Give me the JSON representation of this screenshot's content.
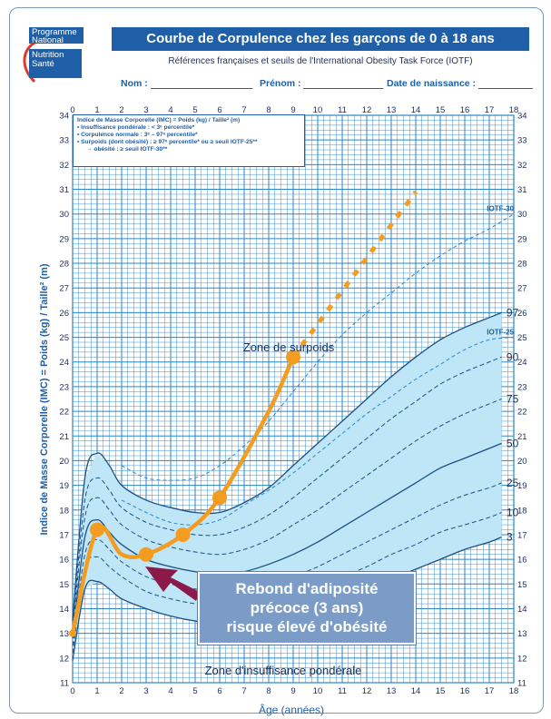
{
  "logo": {
    "line1": "Programme",
    "line2": "National",
    "line3": "Nutrition",
    "line4": "Santé"
  },
  "header": {
    "title": "Courbe de Corpulence chez les garçons de 0 à 18 ans",
    "subtitle": "Références françaises et seuils de l'International Obesity Task Force (IOTF)"
  },
  "form": {
    "name_label": "Nom :",
    "firstname_label": "Prénom :",
    "birthdate_label": "Date de naissance :"
  },
  "legend": {
    "line1": "Indice de Masse Corporelle (IMC) = Poids (kg) / Taille² (m)",
    "line2": "• Insuffisance pondérale : < 3ᵉ percentile*",
    "line3": "• Corpulence normale : 3ᵉ – 97ᵉ percentile*",
    "line4": "• Surpoids (dont obésité) : ≥ 97ᵉ percentile* ou ≥ seuil IOTF-25**",
    "line5": "→ obésité : ≥ seuil IOTF-30**"
  },
  "annotation": {
    "line1": "Rebond d'adiposité",
    "line2": "précoce (3 ans)",
    "line3": "risque élevé d'obésité"
  },
  "colors": {
    "brand_blue": "#1e5fa8",
    "grid_blue": "#2a86c8",
    "band_fill": "#bfe6f6",
    "child_curve": "#f39c1f"
  },
  "chart_data": {
    "type": "line",
    "xlabel": "Âge (années)",
    "ylabel": "Indice de Masse Corporelle (IMC) = Poids (kg) / Taille² (m)",
    "xlim": [
      0,
      18
    ],
    "ylim": [
      11,
      34
    ],
    "x_ticks": [
      0,
      1,
      2,
      3,
      4,
      5,
      6,
      7,
      8,
      9,
      10,
      11,
      12,
      13,
      14,
      15,
      16,
      17,
      18
    ],
    "y_ticks": [
      11,
      12,
      13,
      14,
      15,
      16,
      17,
      18,
      19,
      20,
      21,
      22,
      23,
      24,
      25,
      26,
      27,
      28,
      29,
      30,
      31,
      32,
      33,
      34
    ],
    "grid": true,
    "zone_labels": {
      "overweight": "Zone de surpoids",
      "underweight": "Zone d'insuffisance pondérale"
    },
    "percentile_curves": [
      {
        "name": "97",
        "x": [
          0,
          0.5,
          1,
          1.5,
          2,
          3,
          4,
          5,
          6,
          7,
          8,
          9,
          10,
          11,
          12,
          13,
          14,
          15,
          16,
          17,
          17.5
        ],
        "y": [
          13.5,
          19.3,
          20.3,
          19.8,
          19.0,
          18.4,
          18.1,
          17.9,
          17.9,
          18.3,
          18.9,
          19.8,
          20.7,
          21.6,
          22.5,
          23.4,
          24.2,
          24.9,
          25.4,
          25.8,
          26.0
        ]
      },
      {
        "name": "90",
        "x": [
          0,
          0.5,
          1,
          1.5,
          2,
          3,
          4,
          5,
          6,
          7,
          8,
          9,
          10,
          11,
          12,
          13,
          14,
          15,
          16,
          17,
          17.5
        ],
        "y": [
          13.3,
          18.4,
          19.3,
          18.8,
          18.1,
          17.5,
          17.2,
          17.0,
          17.0,
          17.3,
          17.8,
          18.5,
          19.3,
          20.1,
          20.9,
          21.7,
          22.4,
          23.1,
          23.6,
          24.0,
          24.2
        ]
      },
      {
        "name": "75",
        "x": [
          0,
          0.5,
          1,
          1.5,
          2,
          3,
          4,
          5,
          6,
          7,
          8,
          9,
          10,
          11,
          12,
          13,
          14,
          15,
          16,
          17,
          17.5
        ],
        "y": [
          13.1,
          17.7,
          18.5,
          18.0,
          17.4,
          16.8,
          16.5,
          16.3,
          16.2,
          16.4,
          16.8,
          17.4,
          18.0,
          18.7,
          19.4,
          20.1,
          20.8,
          21.4,
          21.9,
          22.3,
          22.5
        ]
      },
      {
        "name": "50",
        "x": [
          0,
          0.5,
          1,
          1.5,
          2,
          3,
          4,
          5,
          6,
          7,
          8,
          9,
          10,
          11,
          12,
          13,
          14,
          15,
          16,
          17,
          17.5
        ],
        "y": [
          12.8,
          16.9,
          17.6,
          17.1,
          16.6,
          16.0,
          15.7,
          15.5,
          15.4,
          15.5,
          15.8,
          16.2,
          16.7,
          17.3,
          17.9,
          18.5,
          19.1,
          19.7,
          20.1,
          20.5,
          20.7
        ]
      },
      {
        "name": "25",
        "x": [
          0,
          0.5,
          1,
          1.5,
          2,
          3,
          4,
          5,
          6,
          7,
          8,
          9,
          10,
          11,
          12,
          13,
          14,
          15,
          16,
          17,
          17.5
        ],
        "y": [
          12.5,
          16.2,
          16.8,
          16.4,
          15.9,
          15.3,
          15.0,
          14.8,
          14.7,
          14.8,
          15.0,
          15.3,
          15.7,
          16.2,
          16.7,
          17.2,
          17.7,
          18.2,
          18.6,
          18.9,
          19.1
        ]
      },
      {
        "name": "10",
        "x": [
          0,
          0.5,
          1,
          1.5,
          2,
          3,
          4,
          5,
          6,
          7,
          8,
          9,
          10,
          11,
          12,
          13,
          14,
          15,
          16,
          17,
          17.5
        ],
        "y": [
          12.2,
          15.6,
          16.1,
          15.7,
          15.3,
          14.7,
          14.4,
          14.2,
          14.1,
          14.2,
          14.3,
          14.6,
          14.9,
          15.3,
          15.7,
          16.2,
          16.6,
          17.1,
          17.4,
          17.7,
          17.9
        ]
      },
      {
        "name": "3",
        "x": [
          0,
          0.5,
          1,
          1.5,
          2,
          3,
          4,
          5,
          6,
          7,
          8,
          9,
          10,
          11,
          12,
          13,
          14,
          15,
          16,
          17,
          17.5
        ],
        "y": [
          11.9,
          14.8,
          15.1,
          14.8,
          14.4,
          14.0,
          13.7,
          13.5,
          13.4,
          13.4,
          13.5,
          13.8,
          14.1,
          14.4,
          14.8,
          15.2,
          15.6,
          16.0,
          16.4,
          16.7,
          16.9
        ]
      }
    ],
    "iotf_curves": [
      {
        "name": "IOTF-30",
        "x": [
          2,
          3,
          4,
          5,
          6,
          7,
          8,
          9,
          10,
          11,
          12,
          13,
          14,
          15,
          16,
          17,
          18
        ],
        "y": [
          19.8,
          19.3,
          19.2,
          19.3,
          19.8,
          20.6,
          21.6,
          22.8,
          24.0,
          25.1,
          26.0,
          26.8,
          27.6,
          28.3,
          28.9,
          29.4,
          30.0
        ]
      },
      {
        "name": "IOTF-25",
        "x": [
          2,
          3,
          4,
          5,
          6,
          7,
          8,
          9,
          10,
          11,
          12,
          13,
          14,
          15,
          16,
          17,
          18
        ],
        "y": [
          18.4,
          17.9,
          17.5,
          17.4,
          17.6,
          18.2,
          18.8,
          19.5,
          20.3,
          21.1,
          21.9,
          22.6,
          23.3,
          23.9,
          24.5,
          24.9,
          25.0
        ]
      }
    ],
    "child_curve": {
      "x": [
        0,
        1,
        2,
        3,
        4.5,
        6,
        8,
        9
      ],
      "y": [
        13.0,
        17.2,
        16.2,
        16.2,
        17.0,
        18.5,
        22.0,
        24.2
      ],
      "points_x": [
        0,
        1,
        3,
        4.5,
        6,
        9
      ],
      "points_y": [
        13.0,
        17.2,
        16.2,
        17.0,
        18.5,
        24.2
      ],
      "projection_x": [
        9,
        14
      ],
      "projection_y": [
        24.2,
        30.9
      ]
    }
  }
}
